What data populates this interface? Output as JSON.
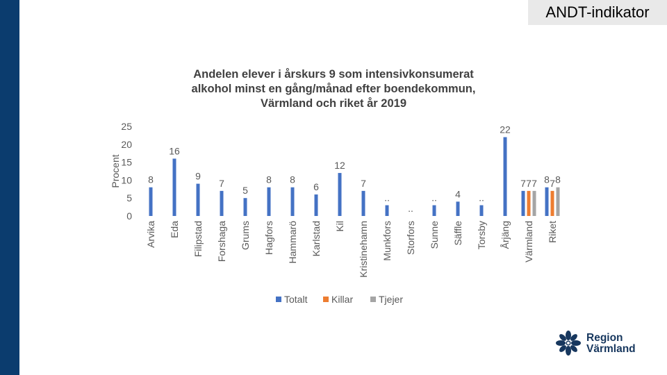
{
  "header": {
    "tag": "ANDT-indikator"
  },
  "logo": {
    "line1": "Region",
    "line2": "Värmland"
  },
  "colors": {
    "totalt": "#4472c4",
    "killar": "#ed7d31",
    "tjejer": "#a5a5a5",
    "sidebar": "#0b3c6e",
    "text": "#595959"
  },
  "chart_data": {
    "type": "bar",
    "title": "Andelen elever i årskurs 9 som intensivkonsumerat alkohol minst en gång/månad efter boendekommun, Värmland och riket år 2019",
    "title_lines": [
      "Andelen elever i årskurs 9 som intensivkonsumerat",
      "alkohol minst en gång/månad efter boendekommun,",
      "Värmland och riket år 2019"
    ],
    "ylabel": "Procent",
    "xlabel": "",
    "ylim": [
      0,
      25
    ],
    "yticks": [
      0,
      5,
      10,
      15,
      20,
      25
    ],
    "grid": false,
    "legend_position": "bottom",
    "categories": [
      "Arvika",
      "Eda",
      "Filipstad",
      "Forshaga",
      "Grums",
      "Hagfors",
      "Hammarö",
      "Karlstad",
      "Kil",
      "Kristinehamn",
      "Munkfors",
      "Storfors",
      "Sunne",
      "Säffle",
      "Torsby",
      "Årjäng",
      "Värmland",
      "Riket"
    ],
    "series": [
      {
        "name": "Totalt",
        "color": "#4472c4",
        "values": [
          8,
          16,
          9,
          7,
          5,
          8,
          8,
          6,
          12,
          7,
          3,
          0,
          3,
          4,
          3,
          22,
          7,
          8
        ],
        "labels": [
          "8",
          "16",
          "9",
          "7",
          "5",
          "8",
          "8",
          "6",
          "12",
          "7",
          "..",
          "..",
          "..",
          "4",
          "..",
          "22",
          "7",
          "8"
        ]
      },
      {
        "name": "Killar",
        "color": "#ed7d31",
        "values": [
          null,
          null,
          null,
          null,
          null,
          null,
          null,
          null,
          null,
          null,
          null,
          null,
          null,
          null,
          null,
          null,
          7,
          7
        ],
        "labels": [
          "",
          "",
          "",
          "",
          "",
          "",
          "",
          "",
          "",
          "",
          "",
          "",
          "",
          "",
          "",
          "",
          "7",
          "7"
        ]
      },
      {
        "name": "Tjejer",
        "color": "#a5a5a5",
        "values": [
          null,
          null,
          null,
          null,
          null,
          null,
          null,
          null,
          null,
          null,
          null,
          null,
          null,
          null,
          null,
          null,
          7,
          8
        ],
        "labels": [
          "",
          "",
          "",
          "",
          "",
          "",
          "",
          "",
          "",
          "",
          "",
          "",
          "",
          "",
          "",
          "",
          "7",
          "8"
        ]
      }
    ]
  }
}
